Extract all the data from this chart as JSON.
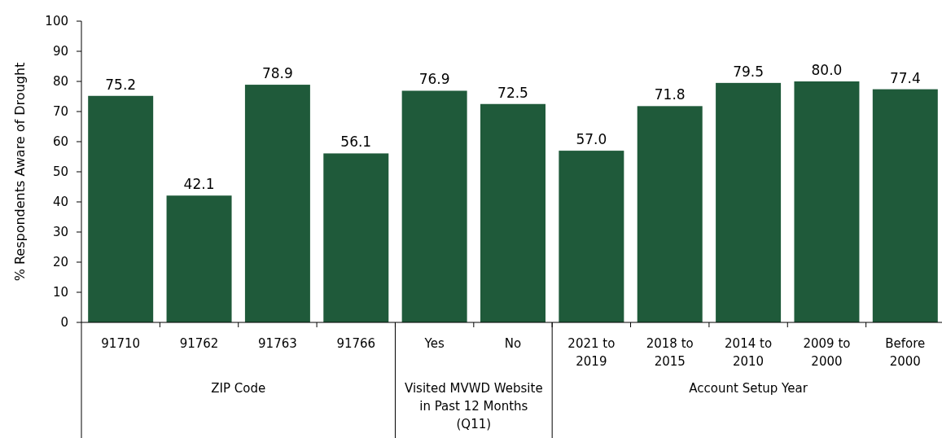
{
  "chart_data": {
    "type": "bar",
    "ylabel": "% Respondents Aware of Drought",
    "categories": [
      "91710",
      "91762",
      "91763",
      "91766",
      "Yes",
      "No",
      "2021 to 2019",
      "2018 to 2015",
      "2014 to 2010",
      "2009 to 2000",
      "Before 2000"
    ],
    "values": [
      75.2,
      42.1,
      78.9,
      56.1,
      76.9,
      72.5,
      57.0,
      71.8,
      79.5,
      80.0,
      77.4
    ],
    "value_labels": [
      "75.2",
      "42.1",
      "78.9",
      "56.1",
      "76.9",
      "72.5",
      "57.0",
      "71.8",
      "79.5",
      "80.0",
      "77.4"
    ],
    "color": "#1f5a3a",
    "ylim": [
      0,
      100
    ],
    "yticks": [
      0,
      10,
      20,
      30,
      40,
      50,
      60,
      70,
      80,
      90,
      100
    ],
    "annotations": [
      "ZIP Code",
      "Visited MVWD Website in Past 12 Months (Q11)",
      "Account Setup Year"
    ]
  }
}
